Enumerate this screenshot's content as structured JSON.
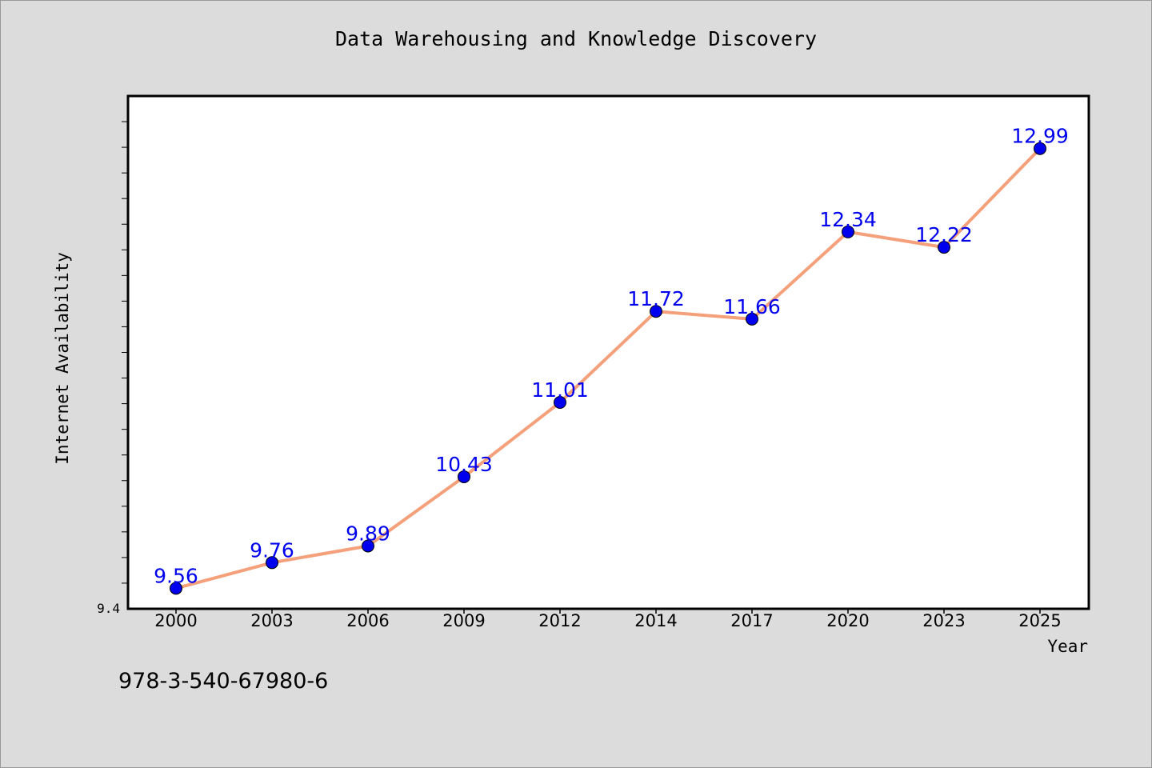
{
  "chart_data": {
    "type": "line",
    "title": "Data Warehousing and Knowledge Discovery",
    "xlabel": "Year",
    "ylabel": "Internet Availability",
    "categories": [
      "2000",
      "2003",
      "2006",
      "2009",
      "2012",
      "2014",
      "2017",
      "2020",
      "2023",
      "2025"
    ],
    "series": [
      {
        "values": [
          9.56,
          9.76,
          9.89,
          10.43,
          11.01,
          11.72,
          11.66,
          12.34,
          12.22,
          12.99
        ],
        "labels": [
          "9.56",
          "9.76",
          "9.89",
          "10.43",
          "11.01",
          "11.72",
          "11.66",
          "12.34",
          "12.22",
          "12.99"
        ]
      }
    ],
    "ylim": [
      9.4,
      13.4
    ],
    "y_min_label": "9.4",
    "grid": false,
    "line_color": "#f4a07a",
    "marker_color": "#0000ee"
  },
  "footnote": "978-3-540-67980-6"
}
